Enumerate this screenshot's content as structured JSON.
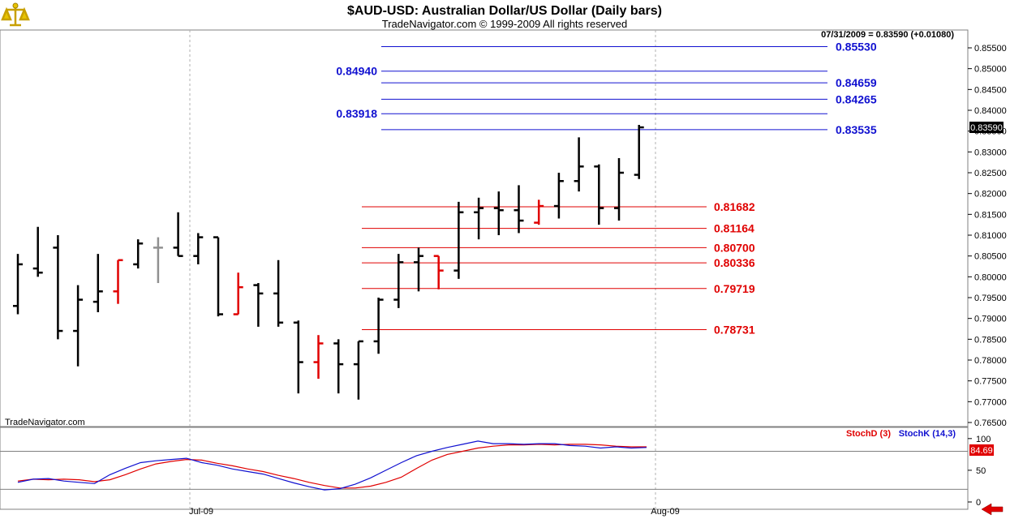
{
  "header": {
    "title": "$AUD-USD:  Australian Dollar/US Dollar  (Daily bars)",
    "copyright": "TradeNavigator.com © 1999-2009 All rights reserved",
    "last_quote": "07/31/2009 = 0.83590 (+0.01080)",
    "watermark": "TradeNavigator.com",
    "logo_icon": "scales-icon"
  },
  "colors": {
    "price_up": "#000000",
    "price_down": "#e00000",
    "price_neutral": "#909090",
    "blue_level": "#1010d0",
    "red_level": "#e00000",
    "stoch_d": "#e00000",
    "stoch_k": "#1010d0"
  },
  "chart_data": [
    {
      "type": "ohlc",
      "title": "$AUD-USD:  Australian Dollar/US Dollar  (Daily bars)",
      "ylim": [
        0.763,
        0.859
      ],
      "x_labels": [
        "Jul-09",
        "Aug-09"
      ],
      "y_ticks": [
        "0.85500",
        "0.85000",
        "0.84500",
        "0.84000",
        "0.83500",
        "0.83000",
        "0.82500",
        "0.82000",
        "0.81500",
        "0.81000",
        "0.80500",
        "0.80000",
        "0.79500",
        "0.79000",
        "0.78500",
        "0.78000",
        "0.77500",
        "0.77000",
        "0.76500"
      ],
      "last_price_label": "0.83590",
      "bars": [
        {
          "o": 0.793,
          "h": 0.8055,
          "l": 0.791,
          "c": 0.803,
          "color": "black"
        },
        {
          "o": 0.802,
          "h": 0.812,
          "l": 0.8,
          "c": 0.801,
          "color": "black"
        },
        {
          "o": 0.807,
          "h": 0.81,
          "l": 0.785,
          "c": 0.787,
          "color": "black"
        },
        {
          "o": 0.787,
          "h": 0.798,
          "l": 0.7785,
          "c": 0.7945,
          "color": "black"
        },
        {
          "o": 0.794,
          "h": 0.8055,
          "l": 0.7915,
          "c": 0.7965,
          "color": "black"
        },
        {
          "o": 0.7965,
          "h": 0.804,
          "l": 0.7935,
          "c": 0.804,
          "color": "red"
        },
        {
          "o": 0.803,
          "h": 0.809,
          "l": 0.802,
          "c": 0.808,
          "color": "black"
        },
        {
          "o": 0.807,
          "h": 0.8095,
          "l": 0.7985,
          "c": 0.807,
          "color": "gray"
        },
        {
          "o": 0.807,
          "h": 0.8155,
          "l": 0.805,
          "c": 0.805,
          "color": "black"
        },
        {
          "o": 0.805,
          "h": 0.8105,
          "l": 0.803,
          "c": 0.8095,
          "color": "black"
        },
        {
          "o": 0.8095,
          "h": 0.8095,
          "l": 0.7905,
          "c": 0.791,
          "color": "black"
        },
        {
          "o": 0.791,
          "h": 0.801,
          "l": 0.791,
          "c": 0.7975,
          "color": "red"
        },
        {
          "o": 0.798,
          "h": 0.7985,
          "l": 0.788,
          "c": 0.796,
          "color": "black"
        },
        {
          "o": 0.796,
          "h": 0.804,
          "l": 0.788,
          "c": 0.789,
          "color": "black"
        },
        {
          "o": 0.789,
          "h": 0.7895,
          "l": 0.772,
          "c": 0.7795,
          "color": "black"
        },
        {
          "o": 0.7795,
          "h": 0.786,
          "l": 0.7755,
          "c": 0.784,
          "color": "red"
        },
        {
          "o": 0.784,
          "h": 0.785,
          "l": 0.772,
          "c": 0.779,
          "color": "black"
        },
        {
          "o": 0.779,
          "h": 0.7845,
          "l": 0.7705,
          "c": 0.7845,
          "color": "black"
        },
        {
          "o": 0.7845,
          "h": 0.795,
          "l": 0.7815,
          "c": 0.7945,
          "color": "black"
        },
        {
          "o": 0.7945,
          "h": 0.8055,
          "l": 0.7925,
          "c": 0.8035,
          "color": "black"
        },
        {
          "o": 0.8035,
          "h": 0.807,
          "l": 0.7965,
          "c": 0.805,
          "color": "black"
        },
        {
          "o": 0.805,
          "h": 0.805,
          "l": 0.797,
          "c": 0.8015,
          "color": "red"
        },
        {
          "o": 0.8015,
          "h": 0.818,
          "l": 0.7995,
          "c": 0.8155,
          "color": "black"
        },
        {
          "o": 0.8155,
          "h": 0.819,
          "l": 0.809,
          "c": 0.8165,
          "color": "black"
        },
        {
          "o": 0.8165,
          "h": 0.8205,
          "l": 0.81,
          "c": 0.816,
          "color": "black"
        },
        {
          "o": 0.816,
          "h": 0.822,
          "l": 0.8105,
          "c": 0.8135,
          "color": "black"
        },
        {
          "o": 0.813,
          "h": 0.8185,
          "l": 0.8125,
          "c": 0.817,
          "color": "red"
        },
        {
          "o": 0.817,
          "h": 0.825,
          "l": 0.814,
          "c": 0.823,
          "color": "black"
        },
        {
          "o": 0.823,
          "h": 0.8335,
          "l": 0.8205,
          "c": 0.8265,
          "color": "black"
        },
        {
          "o": 0.8265,
          "h": 0.827,
          "l": 0.8125,
          "c": 0.8165,
          "color": "black"
        },
        {
          "o": 0.8165,
          "h": 0.8285,
          "l": 0.8135,
          "c": 0.825,
          "color": "black"
        },
        {
          "o": 0.8245,
          "h": 0.8365,
          "l": 0.8235,
          "c": 0.8359,
          "color": "black"
        }
      ],
      "levels_blue": [
        {
          "value": 0.8553,
          "label": "0.85530",
          "side": "right"
        },
        {
          "value": 0.8494,
          "label": "0.84940",
          "side": "left"
        },
        {
          "value": 0.84659,
          "label": "0.84659",
          "side": "right"
        },
        {
          "value": 0.84265,
          "label": "0.84265",
          "side": "right"
        },
        {
          "value": 0.83918,
          "label": "0.83918",
          "side": "left"
        },
        {
          "value": 0.83535,
          "label": "0.83535",
          "side": "right"
        }
      ],
      "levels_red": [
        {
          "value": 0.81682,
          "label": "0.81682"
        },
        {
          "value": 0.81164,
          "label": "0.81164"
        },
        {
          "value": 0.807,
          "label": "0.80700"
        },
        {
          "value": 0.80336,
          "label": "0.80336"
        },
        {
          "value": 0.79719,
          "label": "0.79719"
        },
        {
          "value": 0.78731,
          "label": "0.78731"
        }
      ]
    },
    {
      "type": "line",
      "ylim": [
        0,
        110
      ],
      "y_ticks": [
        "100",
        "50",
        "0"
      ],
      "reference_lines": [
        80,
        20
      ],
      "last_value_label": "84.69",
      "series": [
        {
          "name": "StochD (3)",
          "color": "red",
          "values": [
            33,
            36,
            35,
            36,
            35,
            32,
            35,
            43,
            52,
            60,
            64,
            67,
            66,
            61,
            57,
            52,
            48,
            42,
            37,
            31,
            26,
            22,
            22,
            25,
            31,
            39,
            53,
            66,
            75,
            80,
            85,
            88,
            90,
            90,
            91,
            90,
            91,
            91,
            90,
            88,
            87,
            87
          ]
        },
        {
          "name": "StochK (14,3)",
          "color": "blue",
          "values": [
            31,
            36,
            37,
            33,
            31,
            29,
            43,
            53,
            62,
            65,
            67,
            69,
            62,
            58,
            52,
            48,
            44,
            37,
            30,
            24,
            19,
            21,
            28,
            38,
            50,
            62,
            73,
            80,
            86,
            91,
            96,
            92,
            92,
            91,
            92,
            92,
            89,
            88,
            85,
            87,
            85,
            86
          ]
        }
      ]
    }
  ]
}
